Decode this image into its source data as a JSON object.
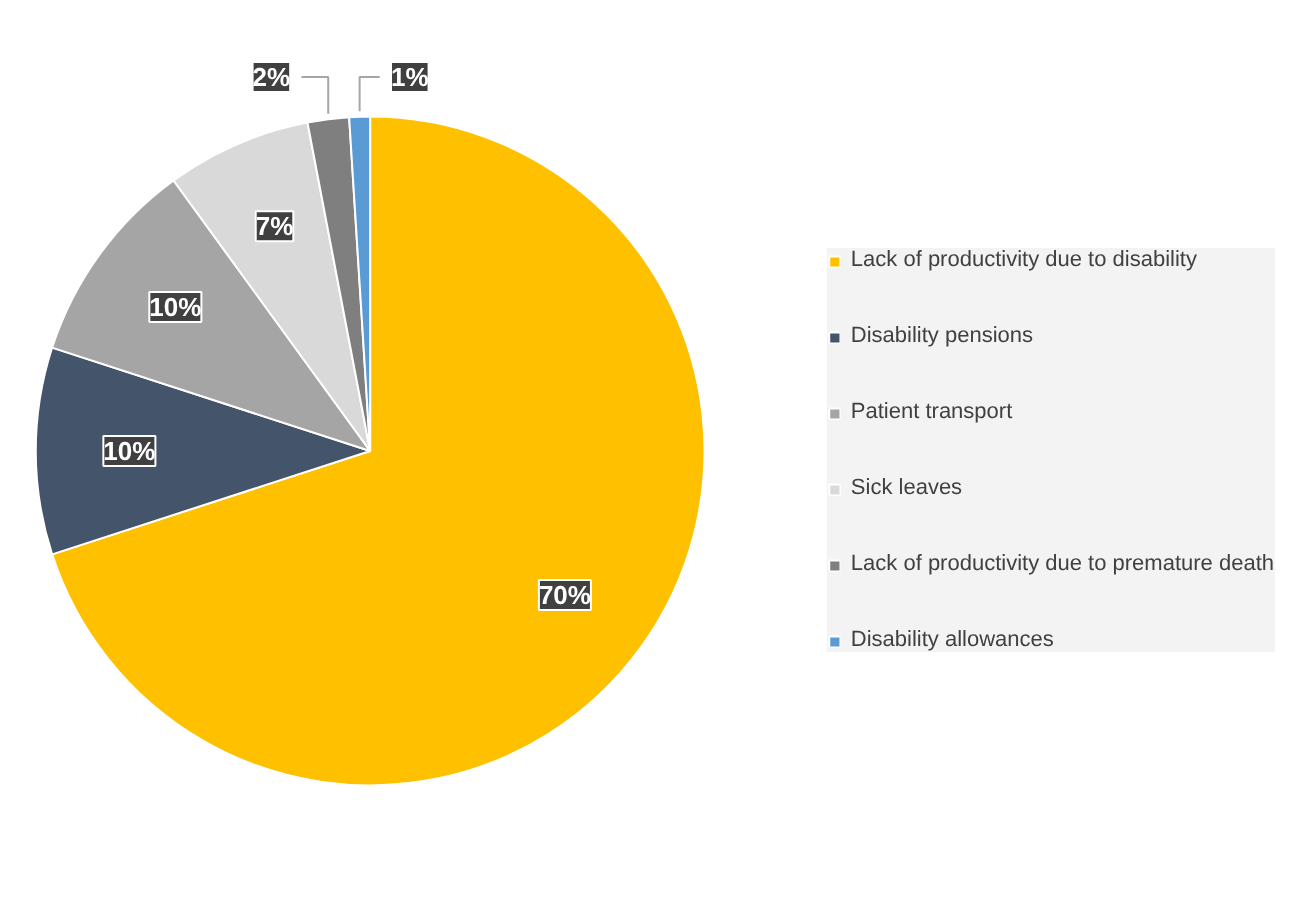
{
  "chart_data": {
    "type": "pie",
    "categories": [
      "Lack of productivity due to disability",
      "Disability pensions",
      "Patient transport",
      "Sick leaves",
      "Lack of productivity due to premature death",
      "Disability allowances"
    ],
    "values": [
      70,
      10,
      10,
      7,
      2,
      1
    ],
    "value_labels": [
      "70%",
      "10%",
      "10%",
      "7%",
      "2%",
      "1%"
    ],
    "colors": [
      "#ffc000",
      "#44546a",
      "#a5a5a5",
      "#d9d9d9",
      "#7f7f7f",
      "#5b9bd5"
    ],
    "legend": "right"
  }
}
